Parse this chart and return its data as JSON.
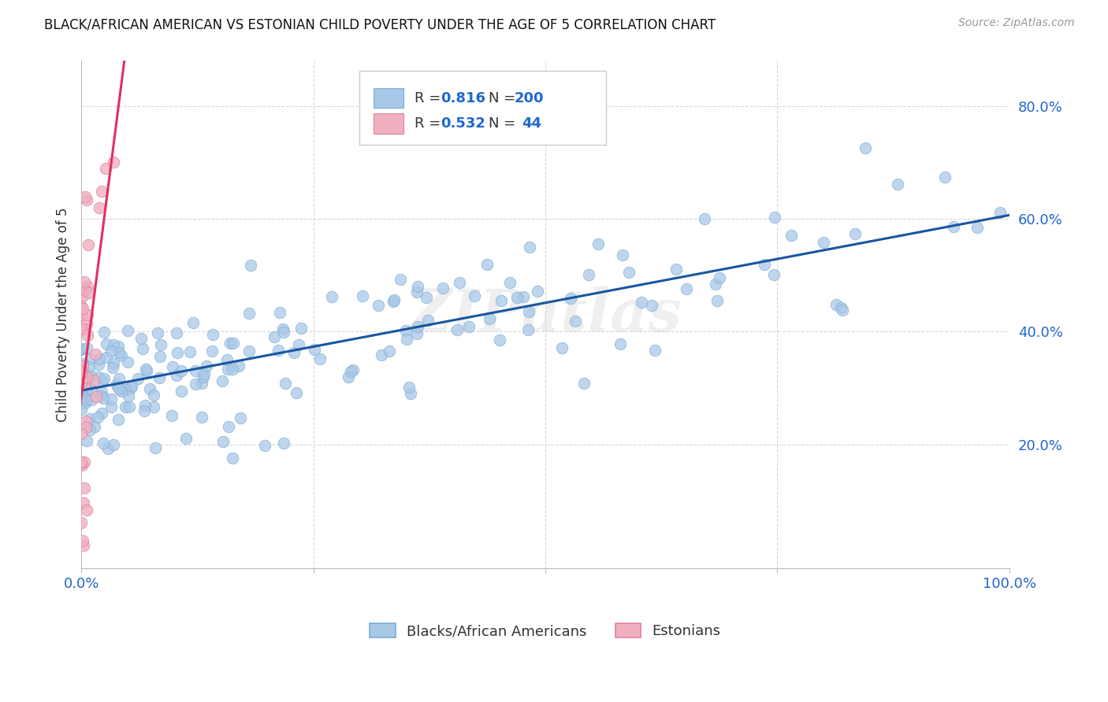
{
  "title": "BLACK/AFRICAN AMERICAN VS ESTONIAN CHILD POVERTY UNDER THE AGE OF 5 CORRELATION CHART",
  "source": "Source: ZipAtlas.com",
  "ylabel": "Child Poverty Under the Age of 5",
  "xlim": [
    0,
    1.0
  ],
  "ylim": [
    -0.02,
    0.88
  ],
  "ytick_positions": [
    0.2,
    0.4,
    0.6,
    0.8
  ],
  "ytick_labels": [
    "20.0%",
    "40.0%",
    "60.0%",
    "80.0%"
  ],
  "blue_color": "#a8c8e8",
  "blue_edge_color": "#7aadd4",
  "blue_line_color": "#1a56a0",
  "pink_color": "#f0b0c0",
  "pink_edge_color": "#e080a0",
  "pink_line_color": "#e03060",
  "R_blue": 0.816,
  "N_blue": 200,
  "R_pink": 0.532,
  "N_pink": 44,
  "legend_labels": [
    "Blacks/African Americans",
    "Estonians"
  ],
  "watermark": "ZIPatlas",
  "background_color": "#ffffff",
  "grid_color": "#d8d8d8",
  "text_color_blue": "#2266cc",
  "text_color_dark": "#333333",
  "title_color": "#111111",
  "source_color": "#999999"
}
